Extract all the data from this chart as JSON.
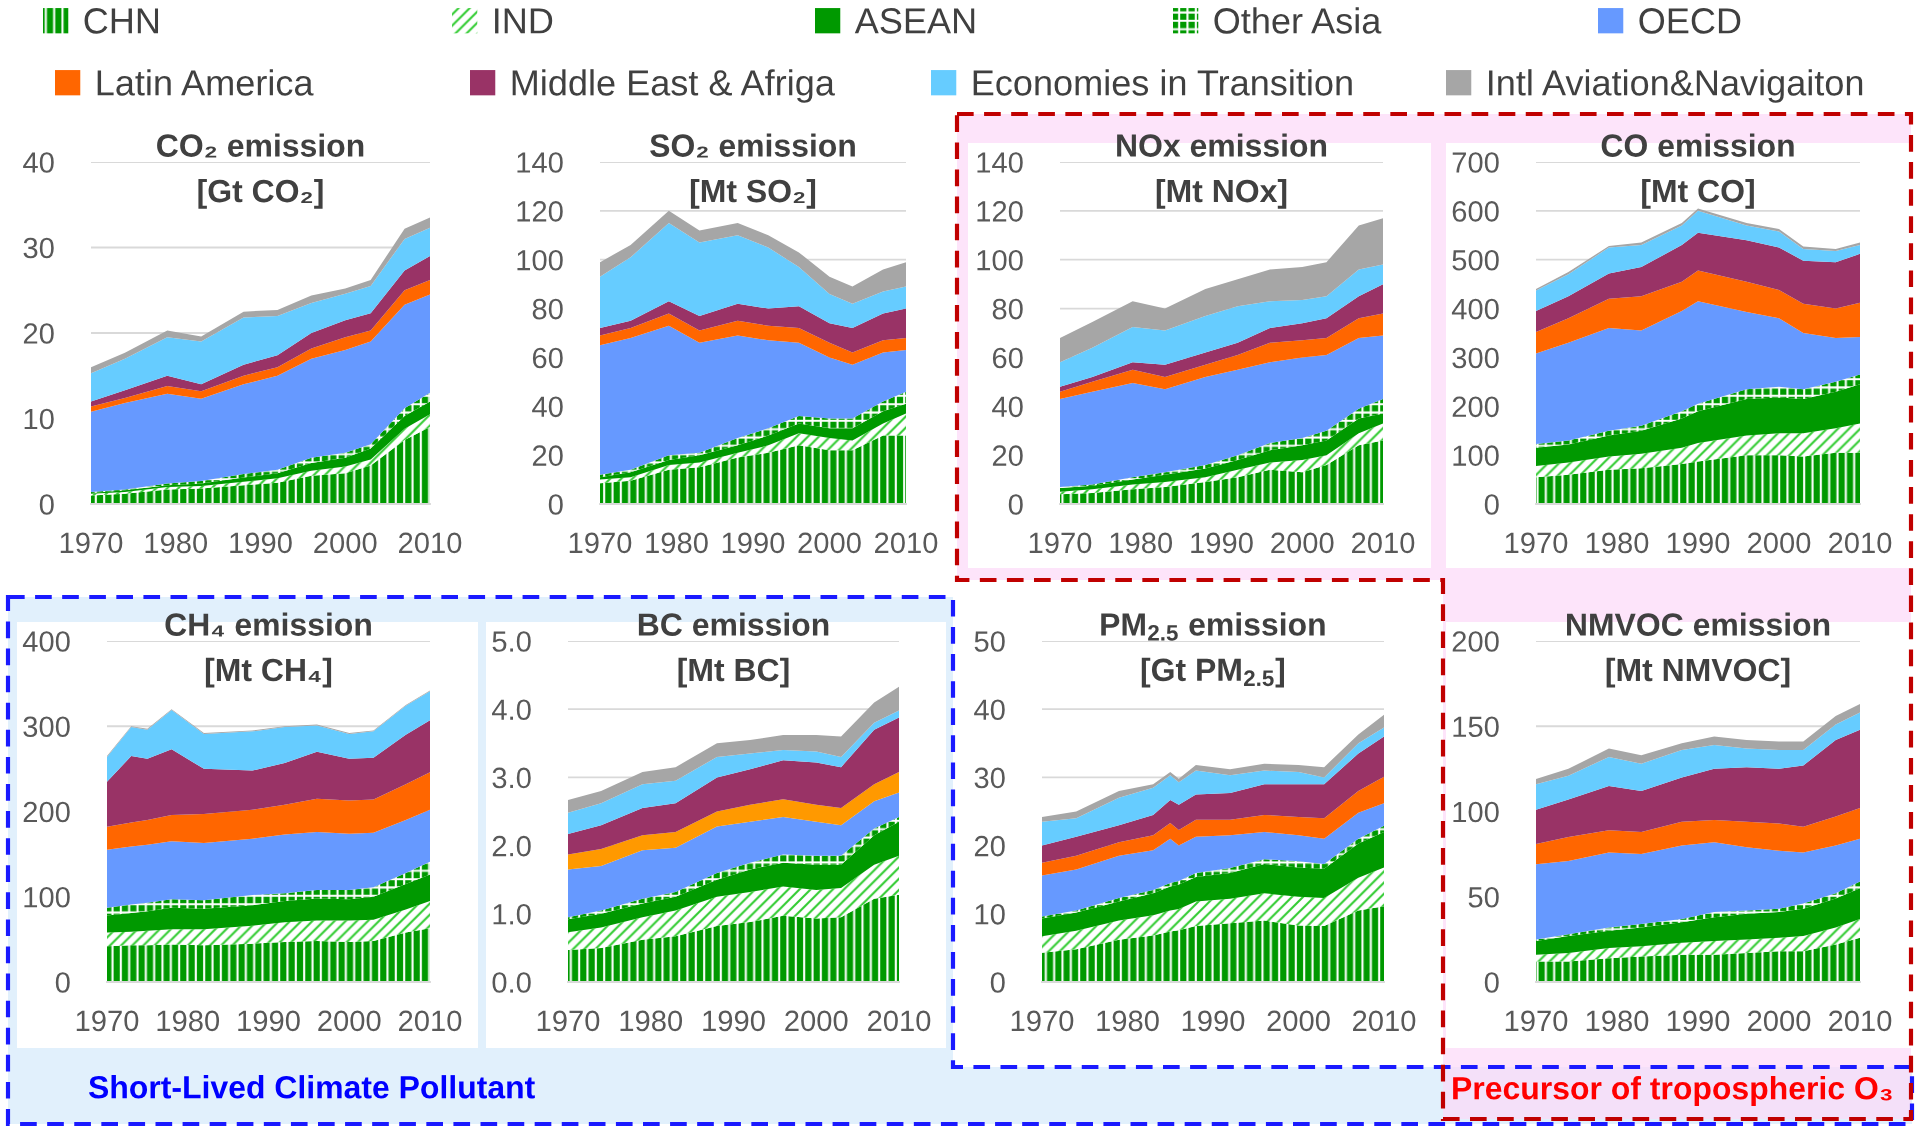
{
  "chart_data": [
    {
      "type": "area",
      "stacked": true,
      "title": "CO₂ emission",
      "subtitle": "[Gt CO₂]",
      "legend": "top",
      "grid": "y",
      "x": [
        1970,
        1974,
        1979,
        1983,
        1988,
        1992,
        1996,
        2000,
        2003,
        2007,
        2010
      ],
      "xlim": [
        1970,
        2010
      ],
      "xticks": [
        1970,
        1980,
        1990,
        2000,
        2010
      ],
      "ylim": [
        0,
        40
      ],
      "yticks": [
        0,
        10,
        20,
        30,
        40
      ],
      "series": [
        {
          "name": "CHN",
          "color": "#009900",
          "values": [
            1.0,
            1.2,
            1.7,
            1.8,
            2.2,
            2.5,
            3.3,
            3.6,
            4.5,
            7.5,
            9.0
          ]
        },
        {
          "name": "IND",
          "color": "#33cc33",
          "values": [
            0.2,
            0.2,
            0.3,
            0.3,
            0.4,
            0.5,
            0.6,
            0.8,
            0.7,
            1.3,
            1.5
          ]
        },
        {
          "name": "ASEAN",
          "color": "#009900",
          "values": [
            0.1,
            0.2,
            0.2,
            0.3,
            0.5,
            0.6,
            0.9,
            1.0,
            1.3,
            1.5,
            1.5
          ]
        },
        {
          "name": "Other Asia",
          "color": "#009900",
          "values": [
            0.1,
            0.1,
            0.2,
            0.3,
            0.4,
            0.4,
            0.6,
            0.6,
            0.5,
            0.9,
            1.0
          ]
        },
        {
          "name": "OECD",
          "color": "#6699ff",
          "values": [
            9.4,
            10.1,
            10.5,
            9.6,
            10.5,
            11.0,
            11.6,
            12.0,
            12.0,
            12.1,
            11.5
          ]
        },
        {
          "name": "Latin America",
          "color": "#ff6600",
          "values": [
            0.6,
            0.6,
            0.9,
            0.9,
            1.0,
            1.0,
            1.2,
            1.5,
            1.3,
            1.7,
            1.7
          ]
        },
        {
          "name": "Middle East & Afriga",
          "color": "#993366",
          "values": [
            0.6,
            0.9,
            1.2,
            0.8,
            1.3,
            1.4,
            1.8,
            2.0,
            2.0,
            2.3,
            2.8
          ]
        },
        {
          "name": "Economies in Transition",
          "color": "#66ccff",
          "values": [
            3.3,
            3.7,
            4.5,
            5.0,
            5.5,
            4.6,
            3.5,
            3.1,
            3.2,
            3.7,
            3.3
          ]
        },
        {
          "name": "Intl Aviation&Navigaiton",
          "color": "#a6a6a6",
          "values": [
            0.7,
            0.7,
            0.8,
            0.6,
            0.7,
            0.7,
            0.9,
            0.6,
            0.7,
            1.2,
            1.2
          ]
        }
      ]
    },
    {
      "type": "area",
      "stacked": true,
      "title": "SO₂ emission",
      "subtitle": "[Mt SO₂]",
      "grid": "y",
      "x": [
        1970,
        1974,
        1979,
        1983,
        1988,
        1992,
        1996,
        2000,
        2003,
        2007,
        2010
      ],
      "xlim": [
        1970,
        2010
      ],
      "xticks": [
        1970,
        1980,
        1990,
        2000,
        2010
      ],
      "ylim": [
        0,
        140
      ],
      "yticks": [
        0,
        20,
        40,
        60,
        80,
        100,
        120,
        140
      ],
      "series": [
        {
          "color": "#009900",
          "values": [
            8.5,
            9.5,
            14,
            15,
            19,
            21,
            24,
            22,
            22,
            28,
            28
          ]
        },
        {
          "color": "#33cc33",
          "values": [
            1.5,
            1.5,
            2,
            2,
            2,
            3,
            5,
            5,
            4,
            5,
            9
          ]
        },
        {
          "color": "#009900",
          "values": [
            1,
            2,
            2,
            3,
            3,
            4,
            4,
            4,
            5,
            5,
            4
          ]
        },
        {
          "color": "#009900",
          "values": [
            1,
            1,
            2,
            1,
            3,
            3,
            3,
            4,
            4,
            4,
            5
          ]
        },
        {
          "color": "#6699ff",
          "values": [
            53,
            54,
            53,
            45,
            42,
            36,
            30,
            25,
            22,
            20,
            17
          ]
        },
        {
          "color": "#ff6600",
          "values": [
            4,
            4,
            5,
            5,
            6,
            6,
            6,
            6,
            5,
            5,
            5
          ]
        },
        {
          "color": "#993366",
          "values": [
            3,
            3,
            5,
            6,
            7,
            7,
            9,
            8,
            10,
            11,
            12
          ]
        },
        {
          "color": "#66ccff",
          "values": [
            21,
            26,
            32,
            30,
            28,
            25,
            16,
            12,
            10,
            9,
            9
          ]
        },
        {
          "color": "#a6a6a6",
          "values": [
            6,
            5,
            5,
            5,
            5,
            5,
            6,
            7,
            7,
            9,
            10
          ]
        }
      ]
    },
    {
      "type": "area",
      "stacked": true,
      "title": "NOx emission",
      "subtitle": "[Mt NOx]",
      "grid": "y",
      "x": [
        1970,
        1974,
        1979,
        1983,
        1988,
        1992,
        1996,
        2000,
        2003,
        2007,
        2010
      ],
      "xlim": [
        1970,
        2010
      ],
      "xticks": [
        1970,
        1980,
        1990,
        2000,
        2010
      ],
      "ylim": [
        0,
        140
      ],
      "yticks": [
        0,
        20,
        40,
        60,
        80,
        100,
        120,
        140
      ],
      "series": [
        {
          "color": "#009900",
          "values": [
            4,
            4.5,
            6,
            7,
            9,
            11,
            14,
            13,
            16,
            24,
            26
          ]
        },
        {
          "color": "#33cc33",
          "values": [
            1,
            1.5,
            2,
            2,
            2,
            3,
            3,
            5,
            4,
            5,
            7
          ]
        },
        {
          "color": "#009900",
          "values": [
            1.5,
            1.5,
            2,
            3,
            3.5,
            4,
            5,
            6,
            6,
            6,
            4
          ]
        },
        {
          "color": "#009900",
          "values": [
            0.5,
            0.5,
            1,
            1,
            1.5,
            2,
            3,
            3,
            4,
            4,
            6
          ]
        },
        {
          "color": "#6699ff",
          "values": [
            36,
            38,
            38.5,
            34,
            36,
            35,
            33,
            33,
            31,
            29,
            26
          ]
        },
        {
          "color": "#ff6600",
          "values": [
            3,
            4,
            5.5,
            5,
            5,
            6,
            8,
            7,
            7,
            8,
            9
          ]
        },
        {
          "color": "#993366",
          "values": [
            2,
            2,
            3,
            5,
            5,
            5,
            6,
            7,
            8,
            9,
            12
          ]
        },
        {
          "color": "#66ccff",
          "values": [
            10,
            12,
            14.5,
            14,
            15,
            15,
            11,
            9.5,
            9,
            11,
            8
          ]
        },
        {
          "color": "#a6a6a6",
          "values": [
            10,
            10.5,
            10.5,
            9,
            11,
            11,
            13,
            13.5,
            14,
            18,
            19
          ]
        }
      ]
    },
    {
      "type": "area",
      "stacked": true,
      "title": "CO emission",
      "subtitle": "[Mt CO]",
      "grid": "y",
      "x": [
        1970,
        1974,
        1979,
        1983,
        1988,
        1990,
        1996,
        2000,
        2003,
        2007,
        2010
      ],
      "xlim": [
        1970,
        2010
      ],
      "xticks": [
        1970,
        1980,
        1990,
        2000,
        2010
      ],
      "ylim": [
        0,
        700
      ],
      "yticks": [
        0,
        100,
        200,
        300,
        400,
        500,
        600,
        700
      ],
      "series": [
        {
          "color": "#009900",
          "values": [
            55,
            60,
            70,
            73,
            82,
            87,
            100,
            100,
            97,
            105,
            105
          ]
        },
        {
          "color": "#33cc33",
          "values": [
            23,
            25,
            27,
            30,
            33,
            38,
            40,
            45,
            48,
            50,
            60
          ]
        },
        {
          "color": "#009900",
          "values": [
            37,
            37,
            43,
            47,
            60,
            65,
            75,
            73,
            70,
            75,
            80
          ]
        },
        {
          "color": "#009900",
          "values": [
            8,
            8,
            10,
            10,
            15,
            15,
            20,
            22,
            20,
            20,
            20
          ]
        },
        {
          "color": "#6699ff",
          "values": [
            185,
            200,
            210,
            195,
            205,
            210,
            158,
            140,
            115,
            90,
            77
          ]
        },
        {
          "color": "#ff6600",
          "values": [
            44,
            50,
            60,
            70,
            60,
            63,
            62,
            58,
            60,
            60,
            70
          ]
        },
        {
          "color": "#993366",
          "values": [
            43,
            45,
            52,
            60,
            75,
            77,
            85,
            87,
            88,
            95,
            100
          ]
        },
        {
          "color": "#66ccff",
          "values": [
            42,
            45,
            53,
            45,
            40,
            45,
            30,
            33,
            24,
            23,
            18
          ]
        },
        {
          "color": "#a6a6a6",
          "values": [
            3,
            5,
            3,
            5,
            5,
            5,
            5,
            5,
            5,
            4,
            5
          ]
        }
      ]
    },
    {
      "type": "area",
      "stacked": true,
      "title": "CH₄ emission",
      "subtitle": "[Mt CH₄]",
      "grid": "y",
      "annotations": [
        "Short-Lived Climate Pollutant"
      ],
      "x": [
        1970,
        1973,
        1975,
        1978,
        1982,
        1988,
        1992,
        1996,
        2000,
        2003,
        2007,
        2010
      ],
      "xlim": [
        1970,
        2010
      ],
      "xticks": [
        1970,
        1980,
        1990,
        2000,
        2010
      ],
      "ylim": [
        0,
        400
      ],
      "yticks": [
        0,
        100,
        200,
        300,
        400
      ],
      "series": [
        {
          "color": "#009900",
          "values": [
            42,
            43,
            43,
            44,
            43,
            45,
            47,
            48,
            47,
            48,
            58,
            63
          ]
        },
        {
          "color": "#33cc33",
          "values": [
            16,
            16,
            17,
            18,
            19,
            21,
            23,
            24,
            25,
            25,
            27,
            32
          ]
        },
        {
          "color": "#009900",
          "values": [
            20,
            22,
            23,
            25,
            24,
            24,
            25,
            26,
            25,
            27,
            30,
            31
          ]
        },
        {
          "color": "#009900",
          "values": [
            9,
            10,
            10,
            10,
            10,
            12,
            9,
            10,
            11,
            11,
            13,
            15
          ]
        },
        {
          "color": "#6699ff",
          "values": [
            68,
            68,
            68,
            68,
            67,
            66,
            69,
            68,
            66,
            64,
            62,
            61
          ]
        },
        {
          "color": "#ff6600",
          "values": [
            27,
            28,
            29,
            31,
            34,
            34,
            35,
            39,
            39,
            39,
            42,
            44
          ]
        },
        {
          "color": "#993366",
          "values": [
            53,
            78,
            72,
            77,
            53,
            46,
            49,
            55,
            49,
            49,
            58,
            61
          ]
        },
        {
          "color": "#66ccff",
          "values": [
            29,
            34,
            34,
            46,
            41,
            46,
            42,
            31,
            29,
            31,
            34,
            34
          ]
        },
        {
          "color": "#a6a6a6",
          "values": [
            1,
            1,
            1,
            1,
            1,
            1,
            1,
            1,
            1,
            1,
            1,
            1
          ]
        }
      ]
    },
    {
      "type": "area",
      "stacked": true,
      "title": "BC emission",
      "subtitle": "[Mt BC]",
      "grid": "y",
      "x": [
        1970,
        1974,
        1979,
        1983,
        1988,
        1992,
        1996,
        2000,
        2003,
        2007,
        2010
      ],
      "xlim": [
        1970,
        2010
      ],
      "xticks": [
        1970,
        1980,
        1990,
        2000,
        2010
      ],
      "ylim": [
        0,
        5
      ],
      "yticks": [
        {
          "value": 0,
          "label": "0.0"
        },
        {
          "value": 1,
          "label": "1.0"
        },
        {
          "value": 2,
          "label": "2.0"
        },
        {
          "value": 3,
          "label": "3.0"
        },
        {
          "value": 4,
          "label": "4.0"
        },
        {
          "value": 5,
          "label": "5.0"
        }
      ],
      "series": [
        {
          "color": "#009900",
          "values": [
            0.47,
            0.5,
            0.62,
            0.67,
            0.82,
            0.88,
            0.97,
            0.93,
            0.95,
            1.22,
            1.28
          ]
        },
        {
          "color": "#33cc33",
          "values": [
            0.26,
            0.3,
            0.33,
            0.38,
            0.43,
            0.44,
            0.43,
            0.42,
            0.43,
            0.5,
            0.57
          ]
        },
        {
          "color": "#009900",
          "values": [
            0.19,
            0.2,
            0.2,
            0.2,
            0.25,
            0.33,
            0.35,
            0.37,
            0.34,
            0.43,
            0.5
          ]
        },
        {
          "color": "#009900",
          "values": [
            0.03,
            0.05,
            0.07,
            0.07,
            0.1,
            0.1,
            0.12,
            0.13,
            0.13,
            0.1,
            0.07
          ]
        },
        {
          "color": "#6699ff",
          "values": [
            0.7,
            0.65,
            0.71,
            0.65,
            0.68,
            0.6,
            0.55,
            0.5,
            0.45,
            0.4,
            0.36
          ]
        },
        {
          "color": "#ff9900",
          "values": [
            0.22,
            0.25,
            0.22,
            0.23,
            0.22,
            0.25,
            0.26,
            0.25,
            0.25,
            0.25,
            0.3
          ]
        },
        {
          "color": "#993366",
          "values": [
            0.3,
            0.35,
            0.4,
            0.42,
            0.5,
            0.52,
            0.57,
            0.62,
            0.6,
            0.8,
            0.8
          ]
        },
        {
          "color": "#66ccff",
          "values": [
            0.31,
            0.32,
            0.35,
            0.33,
            0.3,
            0.23,
            0.15,
            0.16,
            0.15,
            0.1,
            0.1
          ]
        },
        {
          "color": "#a6a6a6",
          "values": [
            0.19,
            0.18,
            0.18,
            0.2,
            0.2,
            0.2,
            0.22,
            0.24,
            0.3,
            0.3,
            0.35
          ]
        }
      ]
    },
    {
      "type": "area",
      "stacked": true,
      "title": "PM$_{2.5}$ emission",
      "subtitle": "[Gt PM$_{2.5}$]",
      "grid": "y",
      "x": [
        1970,
        1974,
        1979,
        1983,
        1985,
        1986,
        1988,
        1992,
        1996,
        2000,
        2003,
        2007,
        2010
      ],
      "xlim": [
        1970,
        2010
      ],
      "xticks": [
        1970,
        1980,
        1990,
        2000,
        2010
      ],
      "ylim": [
        0,
        50
      ],
      "yticks": [
        0,
        10,
        20,
        30,
        40,
        50
      ],
      "series": [
        {
          "color": "#009900",
          "values": [
            4.3,
            4.8,
            6.2,
            6.8,
            7.4,
            7.6,
            8.2,
            8.6,
            9.0,
            8.3,
            8.2,
            10.5,
            11.1
          ]
        },
        {
          "color": "#33cc33",
          "values": [
            2.4,
            2.7,
            2.8,
            3.0,
            3.1,
            3.1,
            3.6,
            3.6,
            4.0,
            4.2,
            4.1,
            4.8,
            5.7
          ]
        },
        {
          "color": "#009900",
          "values": [
            2.6,
            2.7,
            2.8,
            3.2,
            3.5,
            3.6,
            3.6,
            3.8,
            4.3,
            4.3,
            4.3,
            5.0,
            5.2
          ]
        },
        {
          "color": "#009900",
          "values": [
            0.3,
            0.3,
            0.5,
            0.5,
            0.5,
            0.5,
            0.6,
            0.7,
            0.7,
            0.9,
            0.7,
            0.7,
            0.9
          ]
        },
        {
          "color": "#6699ff",
          "values": [
            6.0,
            6.0,
            6.2,
            5.8,
            6.5,
            5.2,
            5.3,
            4.8,
            4.0,
            3.8,
            3.7,
            3.8,
            3.3
          ]
        },
        {
          "color": "#ff6600",
          "values": [
            1.9,
            2.0,
            2.0,
            2.2,
            2.3,
            2.3,
            2.5,
            2.3,
            2.5,
            2.7,
            3.0,
            3.2,
            3.9
          ]
        },
        {
          "color": "#993366",
          "values": [
            2.5,
            2.8,
            2.5,
            3.0,
            3.4,
            3.7,
            3.7,
            3.9,
            4.5,
            4.8,
            5.0,
            5.5,
            5.9
          ]
        },
        {
          "color": "#66ccff",
          "values": [
            3.5,
            2.7,
            4.0,
            4.0,
            3.6,
            3.3,
            3.5,
            2.6,
            2.0,
            1.8,
            1.0,
            1.5,
            1.3
          ]
        },
        {
          "color": "#a6a6a6",
          "values": [
            0.7,
            1.0,
            1.0,
            0.5,
            0.5,
            0.5,
            0.8,
            0.9,
            1.0,
            1.0,
            1.5,
            1.3,
            1.9
          ]
        }
      ]
    },
    {
      "type": "area",
      "stacked": true,
      "title": "NMVOC emission",
      "subtitle": "[Mt NMVOC]",
      "grid": "y",
      "annotations": [
        "Precursor of tropospheric O₃"
      ],
      "x": [
        1970,
        1974,
        1979,
        1983,
        1988,
        1992,
        1996,
        2000,
        2003,
        2007,
        2010
      ],
      "xlim": [
        1970,
        2010
      ],
      "xticks": [
        1970,
        1980,
        1990,
        2000,
        2010
      ],
      "ylim": [
        0,
        200
      ],
      "yticks": [
        0,
        50,
        100,
        150,
        200
      ],
      "series": [
        {
          "color": "#009900",
          "values": [
            12,
            12,
            14,
            15,
            16,
            16,
            17,
            18,
            18,
            22,
            26
          ]
        },
        {
          "color": "#33cc33",
          "values": [
            4,
            5,
            6,
            6,
            7,
            8,
            8,
            8,
            9,
            10,
            11
          ]
        },
        {
          "color": "#009900",
          "values": [
            8,
            10,
            10,
            11,
            12,
            14,
            15,
            15,
            16,
            17,
            18
          ]
        },
        {
          "color": "#009900",
          "values": [
            1,
            1,
            2,
            2,
            2,
            3,
            2,
            2,
            3,
            3,
            4
          ]
        },
        {
          "color": "#6699ff",
          "values": [
            44,
            43,
            44,
            41,
            43,
            41,
            37,
            34,
            30,
            28,
            25
          ]
        },
        {
          "color": "#ff6600",
          "values": [
            12,
            14,
            13,
            13,
            14,
            13,
            15,
            16,
            15,
            17,
            18
          ]
        },
        {
          "color": "#993366",
          "values": [
            20,
            22,
            26,
            24,
            26,
            30,
            32,
            32,
            36,
            45,
            46
          ]
        },
        {
          "color": "#66ccff",
          "values": [
            15,
            14,
            17,
            16,
            16,
            14,
            11,
            11,
            9,
            9,
            10
          ]
        },
        {
          "color": "#a6a6a6",
          "values": [
            3,
            4,
            5,
            5,
            4,
            5,
            5,
            5,
            5,
            5,
            5
          ]
        }
      ]
    }
  ]
}
